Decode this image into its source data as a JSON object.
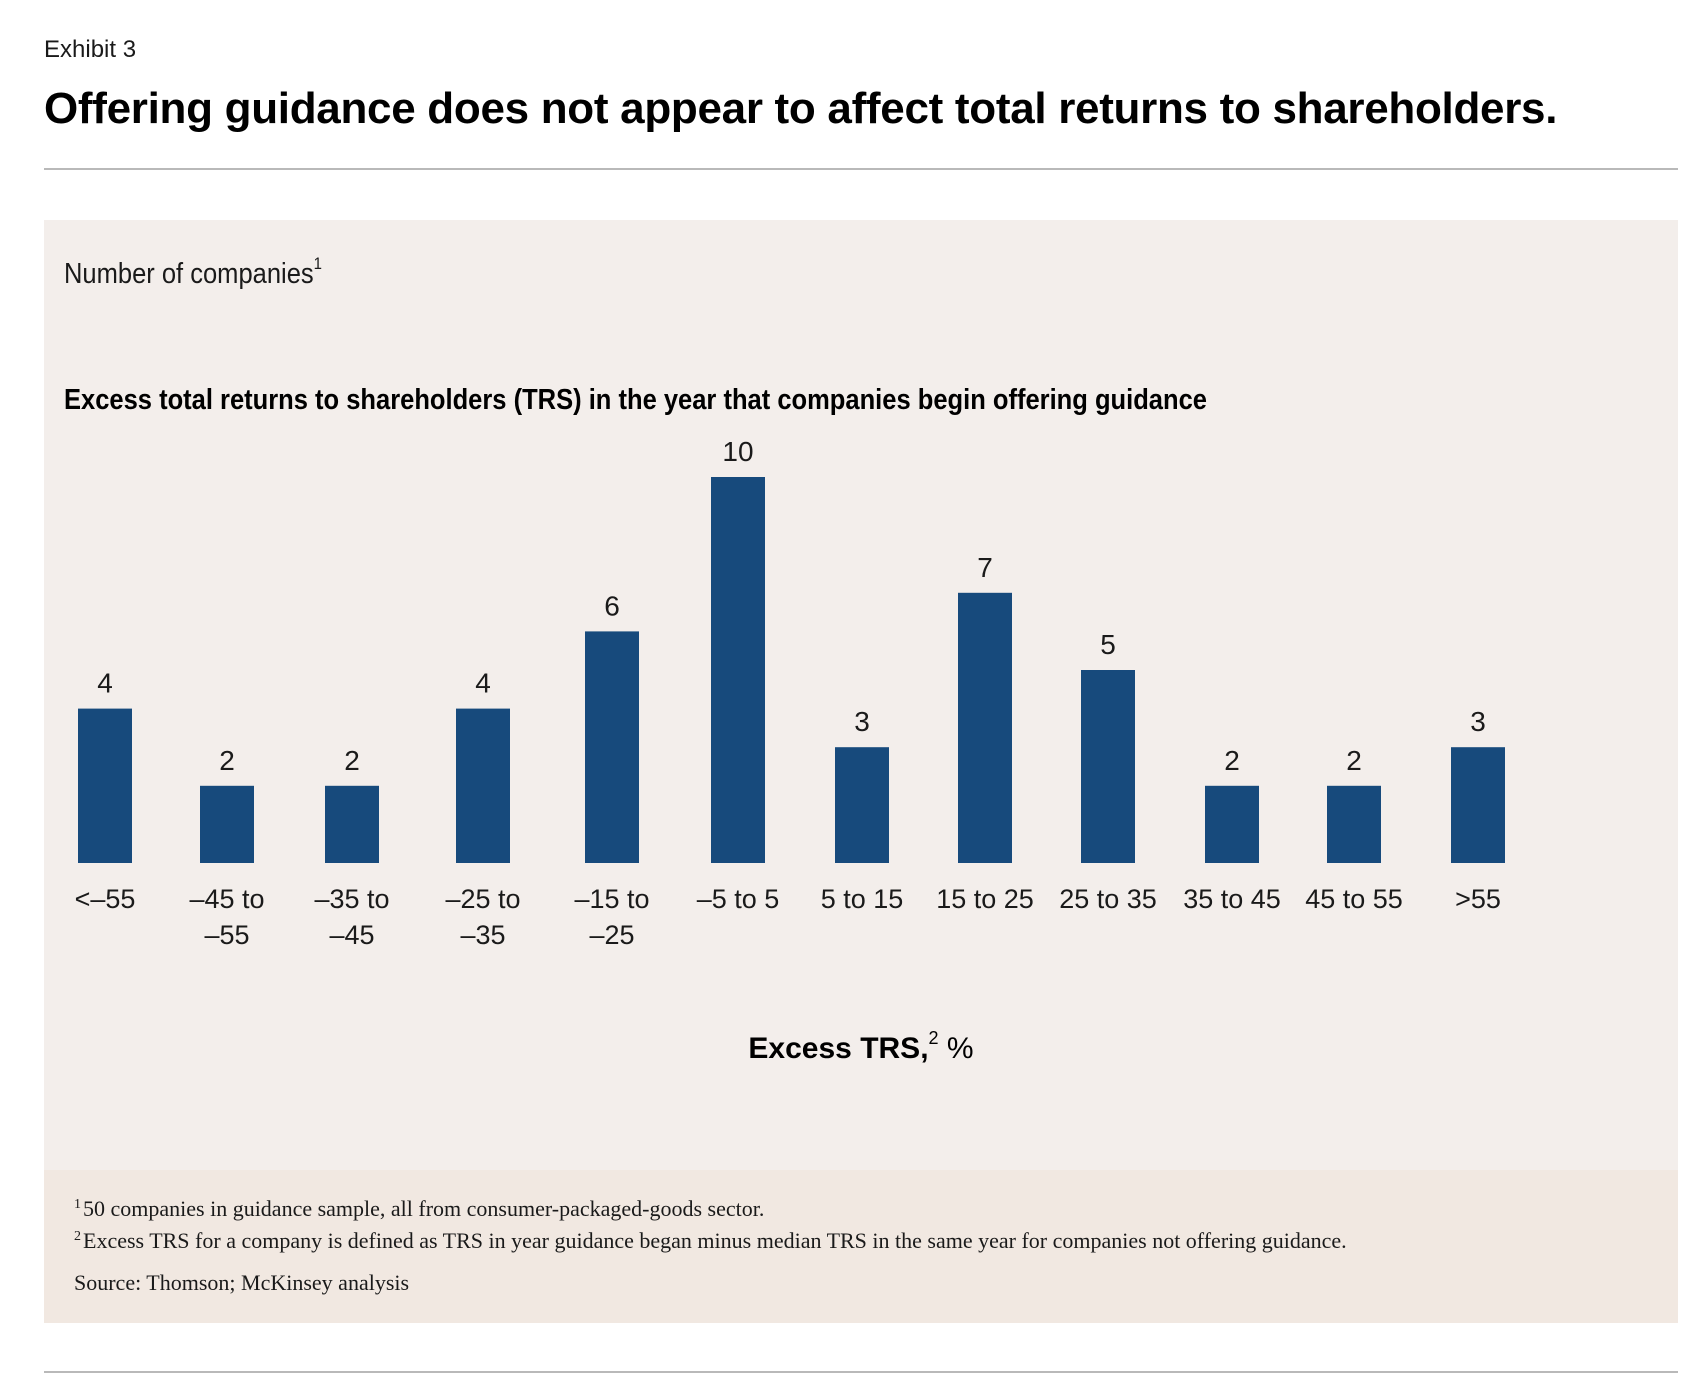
{
  "exhibit": "Exhibit 3",
  "headline": "Offering guidance does not appear to affect total returns to shareholders.",
  "units_label": "Number of companies",
  "units_label_marker": "1",
  "chart_data": {
    "type": "bar",
    "title": "Excess total returns to shareholders (TRS) in the year that companies begin offering guidance",
    "xlabel": "Excess TRS,",
    "xlabel_marker": "2",
    "xlabel_unit": "%",
    "ylabel": "Number of companies",
    "categories": [
      [
        "<–55"
      ],
      [
        "–45 to",
        "–55"
      ],
      [
        "–35 to",
        "–45"
      ],
      [
        "–25 to",
        "–35"
      ],
      [
        "–15 to",
        "–25"
      ],
      [
        "–5 to 5"
      ],
      [
        "5 to 15"
      ],
      [
        "15 to 25"
      ],
      [
        "25 to 35"
      ],
      [
        "35 to 45"
      ],
      [
        "45 to 55"
      ],
      [
        ">55"
      ]
    ],
    "values": [
      4,
      2,
      2,
      4,
      6,
      10,
      3,
      7,
      5,
      2,
      2,
      3
    ],
    "ylim": [
      0,
      10
    ],
    "grid": false,
    "bar_color": "#174a7c"
  },
  "footnotes": [
    {
      "marker": "1",
      "text": "50 companies in guidance sample, all from consumer-packaged-goods sector."
    },
    {
      "marker": "2",
      "text": "Excess TRS for a company is defined as TRS in year guidance began minus median TRS in the same year for companies not offering guidance."
    }
  ],
  "source": "Source: Thomson; McKinsey analysis"
}
